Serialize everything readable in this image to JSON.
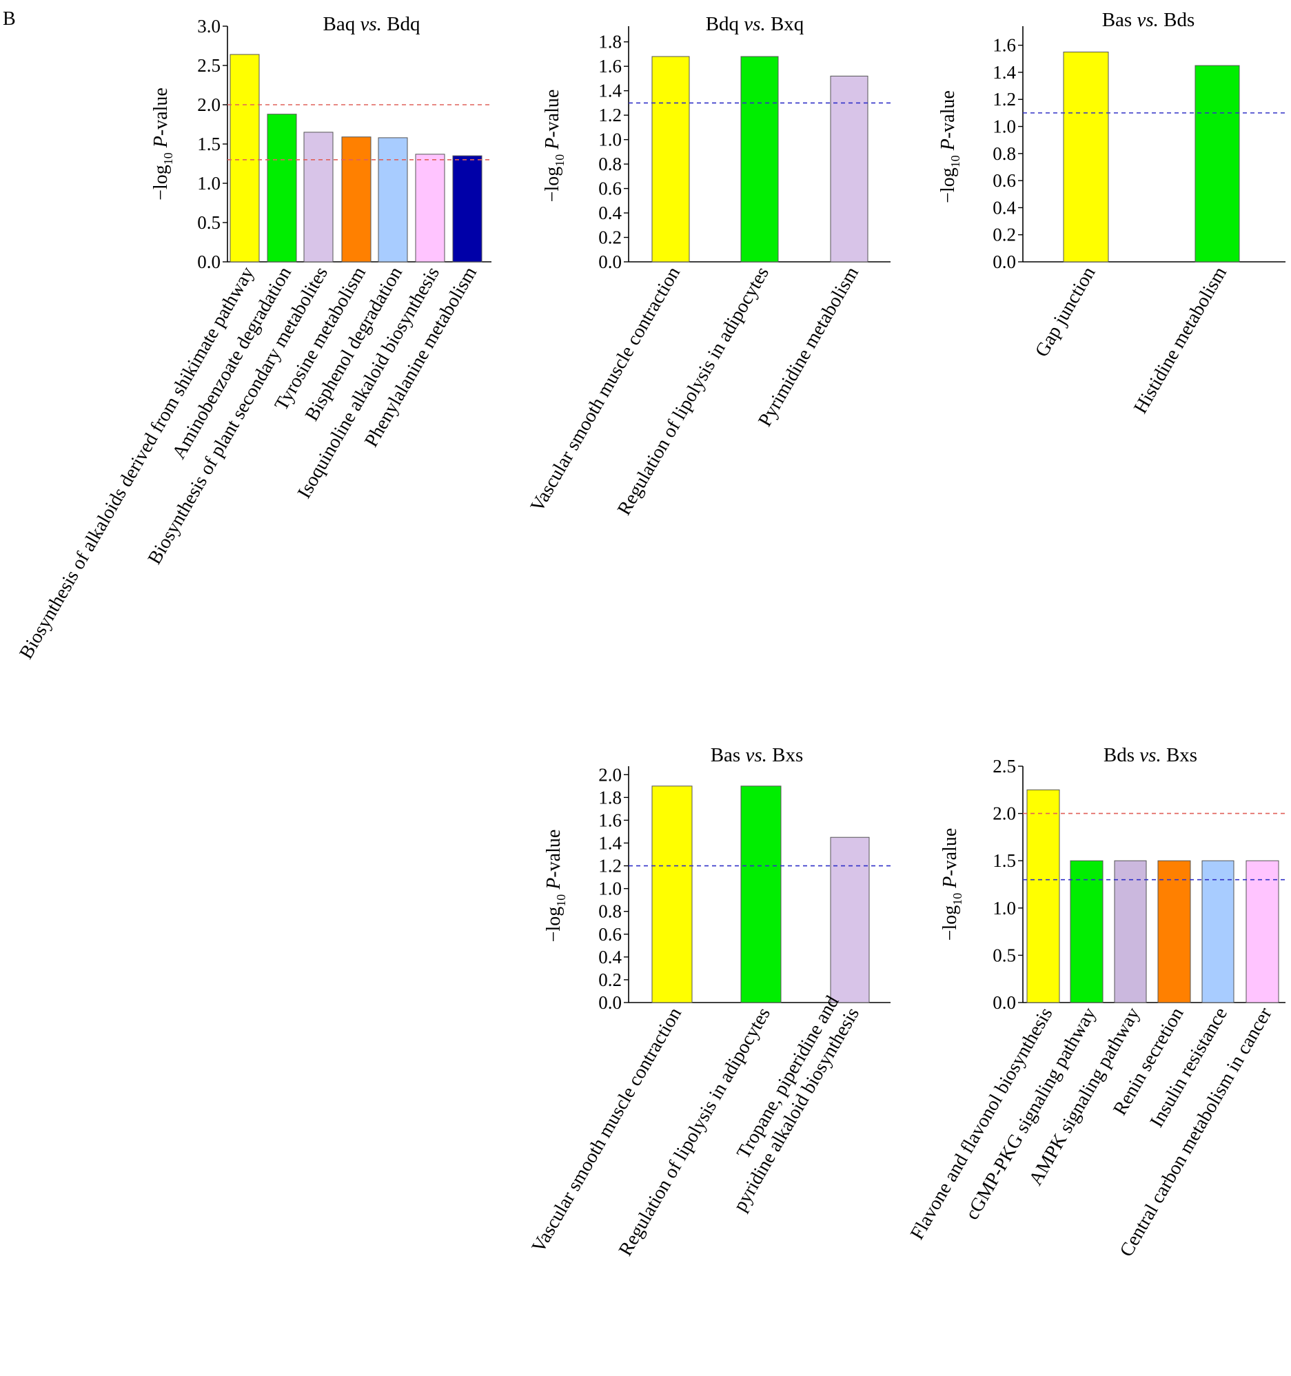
{
  "panel_label": "B",
  "ylabel": {
    "prefix": "−log",
    "sub": "10",
    "italic": " P",
    "suffix": "-value"
  },
  "bar_stroke": "#555555",
  "chart_data": [
    {
      "type": "bar",
      "title": {
        "left": "Baq",
        "vs": "vs.",
        "right": "Bdq"
      },
      "ylim": [
        0,
        3.0
      ],
      "yticks": [
        "0.0",
        "0.5",
        "1.0",
        "1.5",
        "2.0",
        "2.5",
        "3.0"
      ],
      "categories": [
        [
          "Biosynthesis of alkaloids derived from shikimate pathway"
        ],
        [
          "Aminobenzoate degradation"
        ],
        [
          "Biosynthesis of plant secondary metabolites"
        ],
        [
          "Tyrosine metabolism"
        ],
        [
          "Bisphenol degradation"
        ],
        [
          "Isoquinoline alkaloid biosynthesis"
        ],
        [
          "Phenylalanine metabolism"
        ]
      ],
      "values": [
        2.64,
        1.88,
        1.65,
        1.59,
        1.58,
        1.37,
        1.35
      ],
      "colors": [
        "#ffff00",
        "#00ee00",
        "#d8c4e8",
        "#ff8000",
        "#a8ccff",
        "#ffc4ff",
        "#0000a8"
      ],
      "threshold_lines": [
        {
          "value": 2.0,
          "color": "#e0605a"
        },
        {
          "value": 1.3,
          "color": "#e0605a"
        }
      ]
    },
    {
      "type": "bar",
      "title": {
        "left": "Bdq",
        "vs": "vs.",
        "right": "Bxq"
      },
      "ylim": [
        0,
        1.9
      ],
      "yticks": [
        "0.0",
        "0.2",
        "0.4",
        "0.6",
        "0.8",
        "1.0",
        "1.2",
        "1.4",
        "1.6",
        "1.8"
      ],
      "categories": [
        [
          "Vascular smooth muscle contraction"
        ],
        [
          "Regulation of lipolysis in adipocytes"
        ],
        [
          "Pyrimidine metabolism"
        ]
      ],
      "values": [
        1.68,
        1.68,
        1.52
      ],
      "colors": [
        "#ffff00",
        "#00ee00",
        "#d8c4e8"
      ],
      "threshold_lines": [
        {
          "value": 1.3,
          "color": "#3030c8"
        }
      ]
    },
    {
      "type": "bar",
      "title": {
        "left": "Bas",
        "vs": "vs.",
        "right": "Bds"
      },
      "ylim": [
        0,
        1.7
      ],
      "yticks": [
        "0.0",
        "0.2",
        "0.4",
        "0.6",
        "0.8",
        "1.0",
        "1.2",
        "1.4",
        "1.6"
      ],
      "categories": [
        [
          "Gap junction"
        ],
        [
          "Histidine metabolism"
        ]
      ],
      "values": [
        1.55,
        1.45
      ],
      "colors": [
        "#ffff00",
        "#00ee00"
      ],
      "threshold_lines": [
        {
          "value": 1.1,
          "color": "#3030c8"
        }
      ]
    },
    {
      "type": "bar",
      "title": {
        "left": "Bas",
        "vs": "vs.",
        "right": "Bxs"
      },
      "ylim": [
        0,
        2.05
      ],
      "yticks": [
        "0.0",
        "0.2",
        "0.4",
        "0.6",
        "0.8",
        "1.0",
        "1.2",
        "1.4",
        "1.6",
        "1.8",
        "2.0"
      ],
      "categories": [
        [
          "Vascular smooth muscle contraction"
        ],
        [
          "Regulation of lipolysis in adipocytes"
        ],
        [
          "Tropane, piperidine and",
          "pyridine alkaloid biosynthesis"
        ]
      ],
      "values": [
        1.9,
        1.9,
        1.45
      ],
      "colors": [
        "#ffff00",
        "#00ee00",
        "#d8c4e8"
      ],
      "threshold_lines": [
        {
          "value": 1.2,
          "color": "#3030c8"
        }
      ]
    },
    {
      "type": "bar",
      "title": {
        "left": "Bds",
        "vs": "vs.",
        "right": "Bxs"
      },
      "ylim": [
        0,
        2.5
      ],
      "yticks": [
        "0.0",
        "0.5",
        "1.0",
        "1.5",
        "2.0",
        "2.5"
      ],
      "categories": [
        [
          "Flavone and flavonol biosynthesis"
        ],
        [
          "cGMP-PKG signaling pathway"
        ],
        [
          "AMPK signaling pathway"
        ],
        [
          "Renin secretion"
        ],
        [
          "Insulin resistance"
        ],
        [
          "Central carbon metabolism in cancer"
        ]
      ],
      "values": [
        2.25,
        1.5,
        1.5,
        1.5,
        1.5,
        1.5
      ],
      "colors": [
        "#ffff00",
        "#00ee00",
        "#cbb8de",
        "#ff8000",
        "#a8ccff",
        "#ffc4ff"
      ],
      "threshold_lines": [
        {
          "value": 2.0,
          "color": "#e0605a"
        },
        {
          "value": 1.3,
          "color": "#3030c8"
        }
      ]
    }
  ]
}
